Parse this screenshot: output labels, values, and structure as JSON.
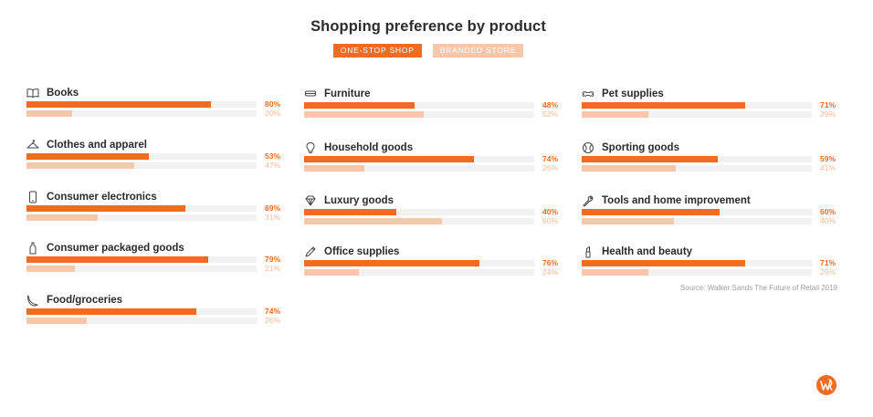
{
  "chart_data": {
    "type": "bar",
    "title": "Shopping preference by product",
    "series": [
      {
        "name": "ONE-STOP SHOP",
        "color": "#f26b21"
      },
      {
        "name": "BRANDED STORE",
        "color": "#f8c6a8"
      }
    ],
    "xlim": [
      0,
      100
    ],
    "items": [
      {
        "label": "Books",
        "icon": "book-icon",
        "one_stop": 80,
        "branded": 20,
        "one_stop_label": "80%",
        "branded_label": "20%"
      },
      {
        "label": "Clothes and apparel",
        "icon": "hanger-icon",
        "one_stop": 53,
        "branded": 47,
        "one_stop_label": "53%",
        "branded_label": "47%"
      },
      {
        "label": "Consumer electronics",
        "icon": "smartphone-icon",
        "one_stop": 69,
        "branded": 31,
        "one_stop_label": "69%",
        "branded_label": "31%"
      },
      {
        "label": "Consumer packaged goods",
        "icon": "bottle-icon",
        "one_stop": 79,
        "branded": 21,
        "one_stop_label": "79%",
        "branded_label": "21%"
      },
      {
        "label": "Food/groceries",
        "icon": "banana-icon",
        "one_stop": 74,
        "branded": 26,
        "one_stop_label": "74%",
        "branded_label": "26%"
      },
      {
        "label": "Furniture",
        "icon": "sofa-icon",
        "one_stop": 48,
        "branded": 52,
        "one_stop_label": "48%",
        "branded_label": "52%"
      },
      {
        "label": "Household goods",
        "icon": "lightbulb-icon",
        "one_stop": 74,
        "branded": 26,
        "one_stop_label": "74%",
        "branded_label": "26%"
      },
      {
        "label": "Luxury goods",
        "icon": "diamond-icon",
        "one_stop": 40,
        "branded": 60,
        "one_stop_label": "40%",
        "branded_label": "60%"
      },
      {
        "label": "Office supplies",
        "icon": "pencil-icon",
        "one_stop": 76,
        "branded": 24,
        "one_stop_label": "76%",
        "branded_label": "24%"
      },
      {
        "label": "Pet supplies",
        "icon": "dog-bone-icon",
        "one_stop": 71,
        "branded": 29,
        "one_stop_label": "71%",
        "branded_label": "29%"
      },
      {
        "label": "Sporting goods",
        "icon": "ball-icon",
        "one_stop": 59,
        "branded": 41,
        "one_stop_label": "59%",
        "branded_label": "41%"
      },
      {
        "label": "Tools and home improvement",
        "icon": "wrench-icon",
        "one_stop": 60,
        "branded": 40,
        "one_stop_label": "60%",
        "branded_label": "40%"
      },
      {
        "label": "Health and beauty",
        "icon": "lipstick-icon",
        "one_stop": 71,
        "branded": 29,
        "one_stop_label": "71%",
        "branded_label": "29%"
      }
    ],
    "source": "Source: Walker Sands The Future of Retail 2019"
  },
  "logo": {
    "icon": "walker-sands-logo-icon",
    "color": "#f26b21"
  }
}
